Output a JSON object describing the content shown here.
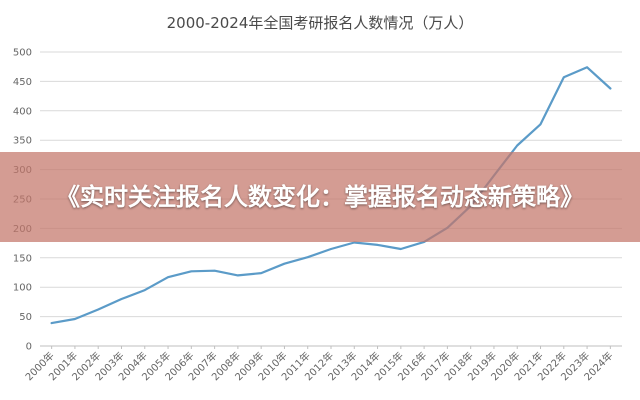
{
  "overlay": {
    "headline": "《实时关注报名人数变化：掌握报名动态新策略》"
  },
  "chart_data": {
    "type": "line",
    "title": "2000-2024年全国考研报名人数情况（万人）",
    "xlabel": "",
    "ylabel": "",
    "categories": [
      "2000年",
      "2001年",
      "2002年",
      "2003年",
      "2004年",
      "2005年",
      "2006年",
      "2007年",
      "2008年",
      "2009年",
      "2010年",
      "2011年",
      "2012年",
      "2013年",
      "2014年",
      "2015年",
      "2016年",
      "2017年",
      "2018年",
      "2019年",
      "2020年",
      "2021年",
      "2022年",
      "2023年",
      "2024年"
    ],
    "series": [
      {
        "values": [
          39,
          46,
          62,
          80,
          95,
          117,
          127,
          128,
          120,
          124,
          140,
          151,
          165,
          176,
          172,
          165,
          177,
          201,
          238,
          290,
          341,
          377,
          457,
          474,
          438
        ]
      }
    ],
    "ylim": [
      0,
      500
    ],
    "yticks": [
      0,
      50,
      100,
      150,
      200,
      250,
      300,
      350,
      400,
      450,
      500
    ],
    "grid": true,
    "legend": "none",
    "line_color": "#5b9bc8"
  }
}
